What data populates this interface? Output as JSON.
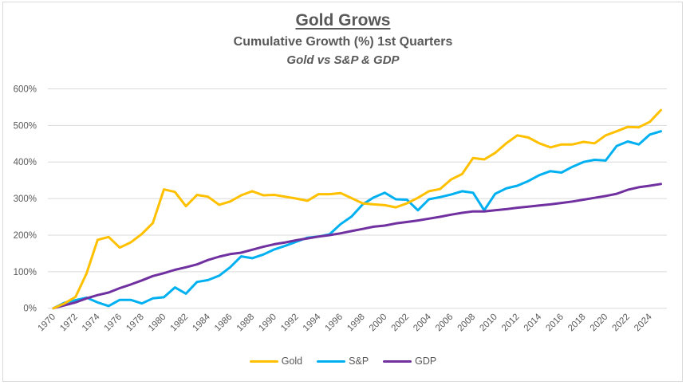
{
  "chart_data": {
    "type": "line",
    "title": "Gold Grows",
    "subtitle": "Cumulative Growth (%) 1st Quarters",
    "subtitle2": "Gold vs S&P & GDP",
    "xlabel": "",
    "ylabel": "",
    "ylim": [
      0,
      600
    ],
    "yticks": [
      0,
      100,
      200,
      300,
      400,
      500,
      600
    ],
    "ytick_labels": [
      "0%",
      "100%",
      "200%",
      "300%",
      "400%",
      "500%",
      "600%"
    ],
    "xlim": [
      1970,
      2025
    ],
    "xtick_labels": [
      "1970",
      "1972",
      "1974",
      "1976",
      "1978",
      "1980",
      "1982",
      "1984",
      "1986",
      "1988",
      "1990",
      "1992",
      "1994",
      "1996",
      "1998",
      "2000",
      "2002",
      "2004",
      "2006",
      "2008",
      "2010",
      "2012",
      "2014",
      "2016",
      "2018",
      "2020",
      "2022",
      "2024"
    ],
    "grid": true,
    "legend_position": "bottom",
    "x": [
      1970,
      1971,
      1972,
      1973,
      1974,
      1975,
      1976,
      1977,
      1978,
      1979,
      1980,
      1981,
      1982,
      1983,
      1984,
      1985,
      1986,
      1987,
      1988,
      1989,
      1990,
      1991,
      1992,
      1993,
      1994,
      1995,
      1996,
      1997,
      1998,
      1999,
      2000,
      2001,
      2002,
      2003,
      2004,
      2005,
      2006,
      2007,
      2008,
      2009,
      2010,
      2011,
      2012,
      2013,
      2014,
      2015,
      2016,
      2017,
      2018,
      2019,
      2020,
      2021,
      2022,
      2023,
      2024,
      2025
    ],
    "series": [
      {
        "name": "Gold",
        "color": "#FFC000",
        "values": [
          0,
          13,
          31,
          95,
          187,
          195,
          166,
          180,
          203,
          233,
          325,
          318,
          279,
          310,
          305,
          283,
          292,
          309,
          320,
          309,
          310,
          305,
          300,
          294,
          312,
          312,
          315,
          301,
          287,
          284,
          282,
          276,
          287,
          302,
          320,
          326,
          352,
          367,
          411,
          407,
          425,
          451,
          473,
          467,
          451,
          440,
          448,
          448,
          455,
          451,
          473,
          484,
          496,
          495,
          510,
          542
        ]
      },
      {
        "name": "S&P",
        "color": "#00B0F0",
        "values": [
          0,
          15,
          22,
          29,
          16,
          6,
          23,
          23,
          13,
          27,
          30,
          57,
          40,
          72,
          77,
          89,
          112,
          142,
          137,
          147,
          161,
          171,
          182,
          193,
          196,
          202,
          230,
          251,
          284,
          303,
          316,
          298,
          297,
          268,
          298,
          304,
          311,
          320,
          316,
          268,
          313,
          328,
          335,
          348,
          364,
          375,
          371,
          387,
          400,
          406,
          404,
          444,
          456,
          448,
          475,
          484
        ]
      },
      {
        "name": "GDP",
        "color": "#7030A0",
        "values": [
          0,
          8,
          16,
          27,
          36,
          43,
          55,
          65,
          76,
          88,
          96,
          105,
          112,
          120,
          132,
          141,
          148,
          152,
          160,
          168,
          175,
          180,
          186,
          191,
          196,
          200,
          205,
          211,
          217,
          223,
          226,
          232,
          236,
          240,
          245,
          250,
          256,
          261,
          265,
          265,
          268,
          271,
          275,
          278,
          281,
          284,
          288,
          292,
          297,
          302,
          307,
          313,
          324,
          331,
          335,
          340
        ]
      }
    ]
  }
}
